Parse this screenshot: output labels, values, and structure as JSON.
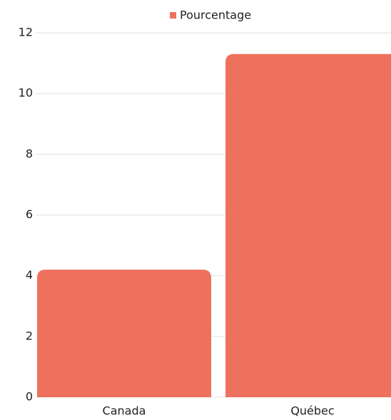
{
  "chart_data": {
    "type": "bar",
    "categories": [
      "Canada",
      "Québec"
    ],
    "series": [
      {
        "name": "Pourcentage",
        "color": "#ee715d",
        "values": [
          4.2,
          11.3
        ]
      }
    ],
    "ylim": [
      0,
      12
    ],
    "yticks": [
      0,
      2,
      4,
      6,
      8,
      10,
      12
    ],
    "grid": true,
    "legend": "top"
  }
}
